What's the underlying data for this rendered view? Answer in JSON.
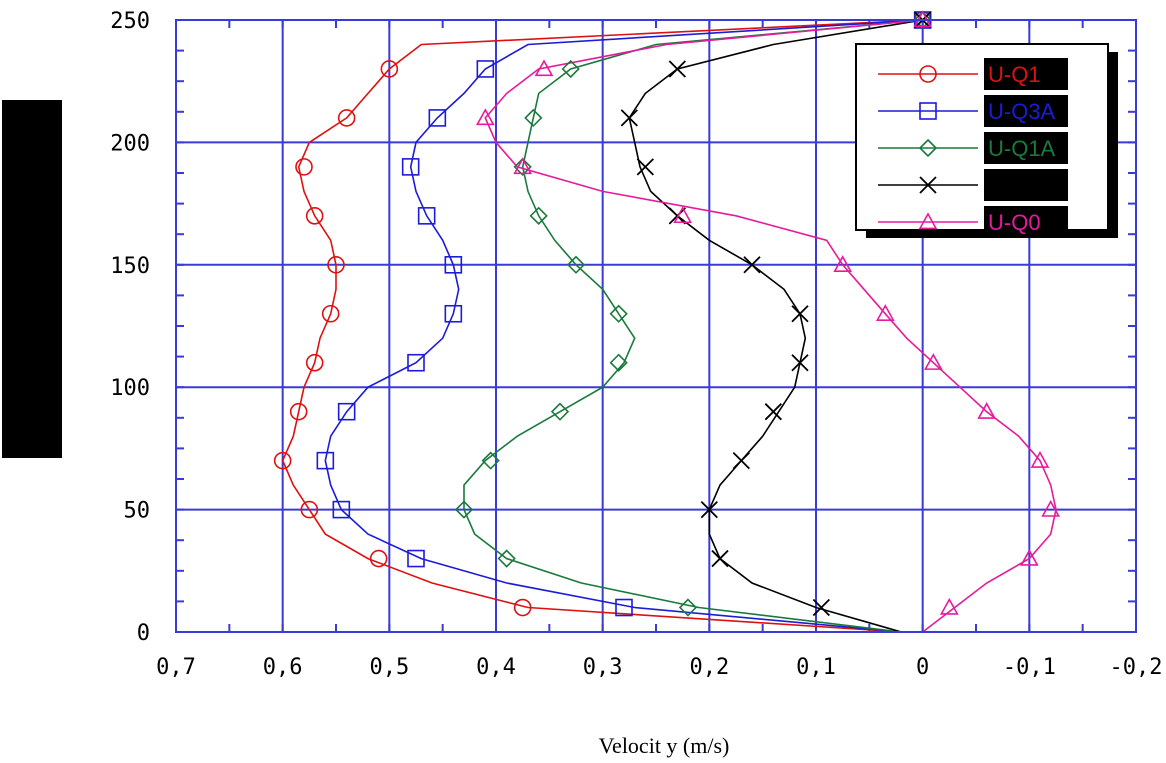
{
  "chart_data": {
    "type": "line",
    "xlabel": "Velocit y (m/s)",
    "ylabel": "",
    "x_reversed": true,
    "xlim": [
      -0.2,
      0.7
    ],
    "ylim": [
      0,
      250
    ],
    "x_ticks": [
      "0,7",
      "0,6",
      "0,5",
      "0,4",
      "0,3",
      "0,2",
      "0,1",
      "0",
      "-0,1",
      "-0,2"
    ],
    "x_tick_values": [
      0.7,
      0.6,
      0.5,
      0.4,
      0.3,
      0.2,
      0.1,
      0,
      -0.1,
      -0.2
    ],
    "y_ticks": [
      "0",
      "50",
      "100",
      "150",
      "200",
      "250"
    ],
    "y_tick_values": [
      0,
      50,
      100,
      150,
      200,
      250
    ],
    "grid": true,
    "legend_position": "top-right",
    "series": [
      {
        "name": "U-Q1",
        "color": "#dd1111",
        "marker": "circle",
        "line": [
          [
            0.02,
            0
          ],
          [
            0.37,
            10
          ],
          [
            0.46,
            20
          ],
          [
            0.52,
            30
          ],
          [
            0.56,
            40
          ],
          [
            0.575,
            50
          ],
          [
            0.59,
            60
          ],
          [
            0.6,
            70
          ],
          [
            0.59,
            80
          ],
          [
            0.585,
            90
          ],
          [
            0.58,
            100
          ],
          [
            0.57,
            110
          ],
          [
            0.565,
            120
          ],
          [
            0.555,
            130
          ],
          [
            0.55,
            140
          ],
          [
            0.55,
            150
          ],
          [
            0.555,
            160
          ],
          [
            0.57,
            170
          ],
          [
            0.58,
            180
          ],
          [
            0.585,
            190
          ],
          [
            0.575,
            200
          ],
          [
            0.54,
            210
          ],
          [
            0.52,
            220
          ],
          [
            0.5,
            230
          ],
          [
            0.47,
            240
          ],
          [
            0,
            250
          ]
        ],
        "points": [
          [
            0.375,
            10
          ],
          [
            0.51,
            30
          ],
          [
            0.575,
            50
          ],
          [
            0.6,
            70
          ],
          [
            0.585,
            90
          ],
          [
            0.57,
            110
          ],
          [
            0.555,
            130
          ],
          [
            0.55,
            150
          ],
          [
            0.57,
            170
          ],
          [
            0.58,
            190
          ],
          [
            0.54,
            210
          ],
          [
            0.5,
            230
          ],
          [
            0,
            250
          ]
        ]
      },
      {
        "name": "U-Q3A",
        "color": "#1c1cd8",
        "marker": "square",
        "line": [
          [
            0.02,
            0
          ],
          [
            0.27,
            10
          ],
          [
            0.39,
            20
          ],
          [
            0.47,
            30
          ],
          [
            0.52,
            40
          ],
          [
            0.545,
            50
          ],
          [
            0.555,
            60
          ],
          [
            0.56,
            70
          ],
          [
            0.555,
            80
          ],
          [
            0.54,
            90
          ],
          [
            0.52,
            100
          ],
          [
            0.475,
            110
          ],
          [
            0.45,
            120
          ],
          [
            0.44,
            130
          ],
          [
            0.435,
            140
          ],
          [
            0.44,
            150
          ],
          [
            0.45,
            160
          ],
          [
            0.465,
            170
          ],
          [
            0.475,
            180
          ],
          [
            0.48,
            190
          ],
          [
            0.475,
            200
          ],
          [
            0.455,
            210
          ],
          [
            0.43,
            220
          ],
          [
            0.41,
            230
          ],
          [
            0.37,
            240
          ],
          [
            0,
            250
          ]
        ],
        "points": [
          [
            0.28,
            10
          ],
          [
            0.475,
            30
          ],
          [
            0.545,
            50
          ],
          [
            0.56,
            70
          ],
          [
            0.54,
            90
          ],
          [
            0.475,
            110
          ],
          [
            0.44,
            130
          ],
          [
            0.44,
            150
          ],
          [
            0.465,
            170
          ],
          [
            0.48,
            190
          ],
          [
            0.455,
            210
          ],
          [
            0.41,
            230
          ],
          [
            0,
            250
          ]
        ]
      },
      {
        "name": "U-Q1A",
        "color": "#1a7a3c",
        "marker": "diamond",
        "line": [
          [
            0.02,
            0
          ],
          [
            0.21,
            10
          ],
          [
            0.32,
            20
          ],
          [
            0.39,
            30
          ],
          [
            0.42,
            40
          ],
          [
            0.43,
            50
          ],
          [
            0.43,
            60
          ],
          [
            0.41,
            70
          ],
          [
            0.38,
            80
          ],
          [
            0.34,
            90
          ],
          [
            0.3,
            100
          ],
          [
            0.28,
            110
          ],
          [
            0.27,
            120
          ],
          [
            0.285,
            130
          ],
          [
            0.3,
            140
          ],
          [
            0.325,
            150
          ],
          [
            0.345,
            160
          ],
          [
            0.36,
            170
          ],
          [
            0.37,
            180
          ],
          [
            0.375,
            190
          ],
          [
            0.37,
            200
          ],
          [
            0.365,
            210
          ],
          [
            0.36,
            220
          ],
          [
            0.33,
            230
          ],
          [
            0.25,
            240
          ],
          [
            0,
            250
          ]
        ],
        "points": [
          [
            0.22,
            10
          ],
          [
            0.39,
            30
          ],
          [
            0.43,
            50
          ],
          [
            0.405,
            70
          ],
          [
            0.34,
            90
          ],
          [
            0.285,
            110
          ],
          [
            0.285,
            130
          ],
          [
            0.325,
            150
          ],
          [
            0.36,
            170
          ],
          [
            0.375,
            190
          ],
          [
            0.365,
            210
          ],
          [
            0.33,
            230
          ],
          [
            0,
            250
          ]
        ]
      },
      {
        "name": "",
        "color": "#000000",
        "marker": "x",
        "line": [
          [
            0.02,
            0
          ],
          [
            0.1,
            10
          ],
          [
            0.16,
            20
          ],
          [
            0.19,
            30
          ],
          [
            0.2,
            40
          ],
          [
            0.2,
            50
          ],
          [
            0.19,
            60
          ],
          [
            0.17,
            70
          ],
          [
            0.15,
            80
          ],
          [
            0.135,
            90
          ],
          [
            0.12,
            100
          ],
          [
            0.115,
            110
          ],
          [
            0.11,
            120
          ],
          [
            0.115,
            130
          ],
          [
            0.13,
            140
          ],
          [
            0.16,
            150
          ],
          [
            0.2,
            160
          ],
          [
            0.23,
            170
          ],
          [
            0.255,
            180
          ],
          [
            0.265,
            190
          ],
          [
            0.27,
            200
          ],
          [
            0.275,
            210
          ],
          [
            0.26,
            220
          ],
          [
            0.23,
            230
          ],
          [
            0.14,
            240
          ],
          [
            0,
            250
          ]
        ],
        "points": [
          [
            0.095,
            10
          ],
          [
            0.19,
            30
          ],
          [
            0.2,
            50
          ],
          [
            0.17,
            70
          ],
          [
            0.14,
            90
          ],
          [
            0.115,
            110
          ],
          [
            0.115,
            130
          ],
          [
            0.16,
            150
          ],
          [
            0.23,
            170
          ],
          [
            0.26,
            190
          ],
          [
            0.275,
            210
          ],
          [
            0.23,
            230
          ],
          [
            0,
            250
          ]
        ]
      },
      {
        "name": "U-Q0",
        "color": "#e61a9c",
        "marker": "triangle",
        "line": [
          [
            0,
            0
          ],
          [
            -0.03,
            10
          ],
          [
            -0.06,
            20
          ],
          [
            -0.1,
            30
          ],
          [
            -0.12,
            40
          ],
          [
            -0.125,
            50
          ],
          [
            -0.12,
            60
          ],
          [
            -0.11,
            70
          ],
          [
            -0.09,
            80
          ],
          [
            -0.06,
            90
          ],
          [
            -0.035,
            100
          ],
          [
            -0.01,
            110
          ],
          [
            0.015,
            120
          ],
          [
            0.035,
            130
          ],
          [
            0.055,
            140
          ],
          [
            0.075,
            150
          ],
          [
            0.09,
            160
          ],
          [
            0.175,
            170
          ],
          [
            0.3,
            180
          ],
          [
            0.38,
            190
          ],
          [
            0.4,
            200
          ],
          [
            0.41,
            210
          ],
          [
            0.39,
            220
          ],
          [
            0.36,
            230
          ],
          [
            0.24,
            240
          ],
          [
            0,
            250
          ]
        ],
        "points": [
          [
            -0.025,
            10
          ],
          [
            -0.1,
            30
          ],
          [
            -0.12,
            50
          ],
          [
            -0.11,
            70
          ],
          [
            -0.06,
            90
          ],
          [
            -0.01,
            110
          ],
          [
            0.035,
            130
          ],
          [
            0.075,
            150
          ],
          [
            0.225,
            170
          ],
          [
            0.375,
            190
          ],
          [
            0.41,
            210
          ],
          [
            0.355,
            230
          ],
          [
            0,
            250
          ]
        ]
      }
    ],
    "legend_labels": [
      "U-Q1",
      "U-Q3A",
      "U-Q1A",
      "",
      "U-Q0"
    ]
  }
}
